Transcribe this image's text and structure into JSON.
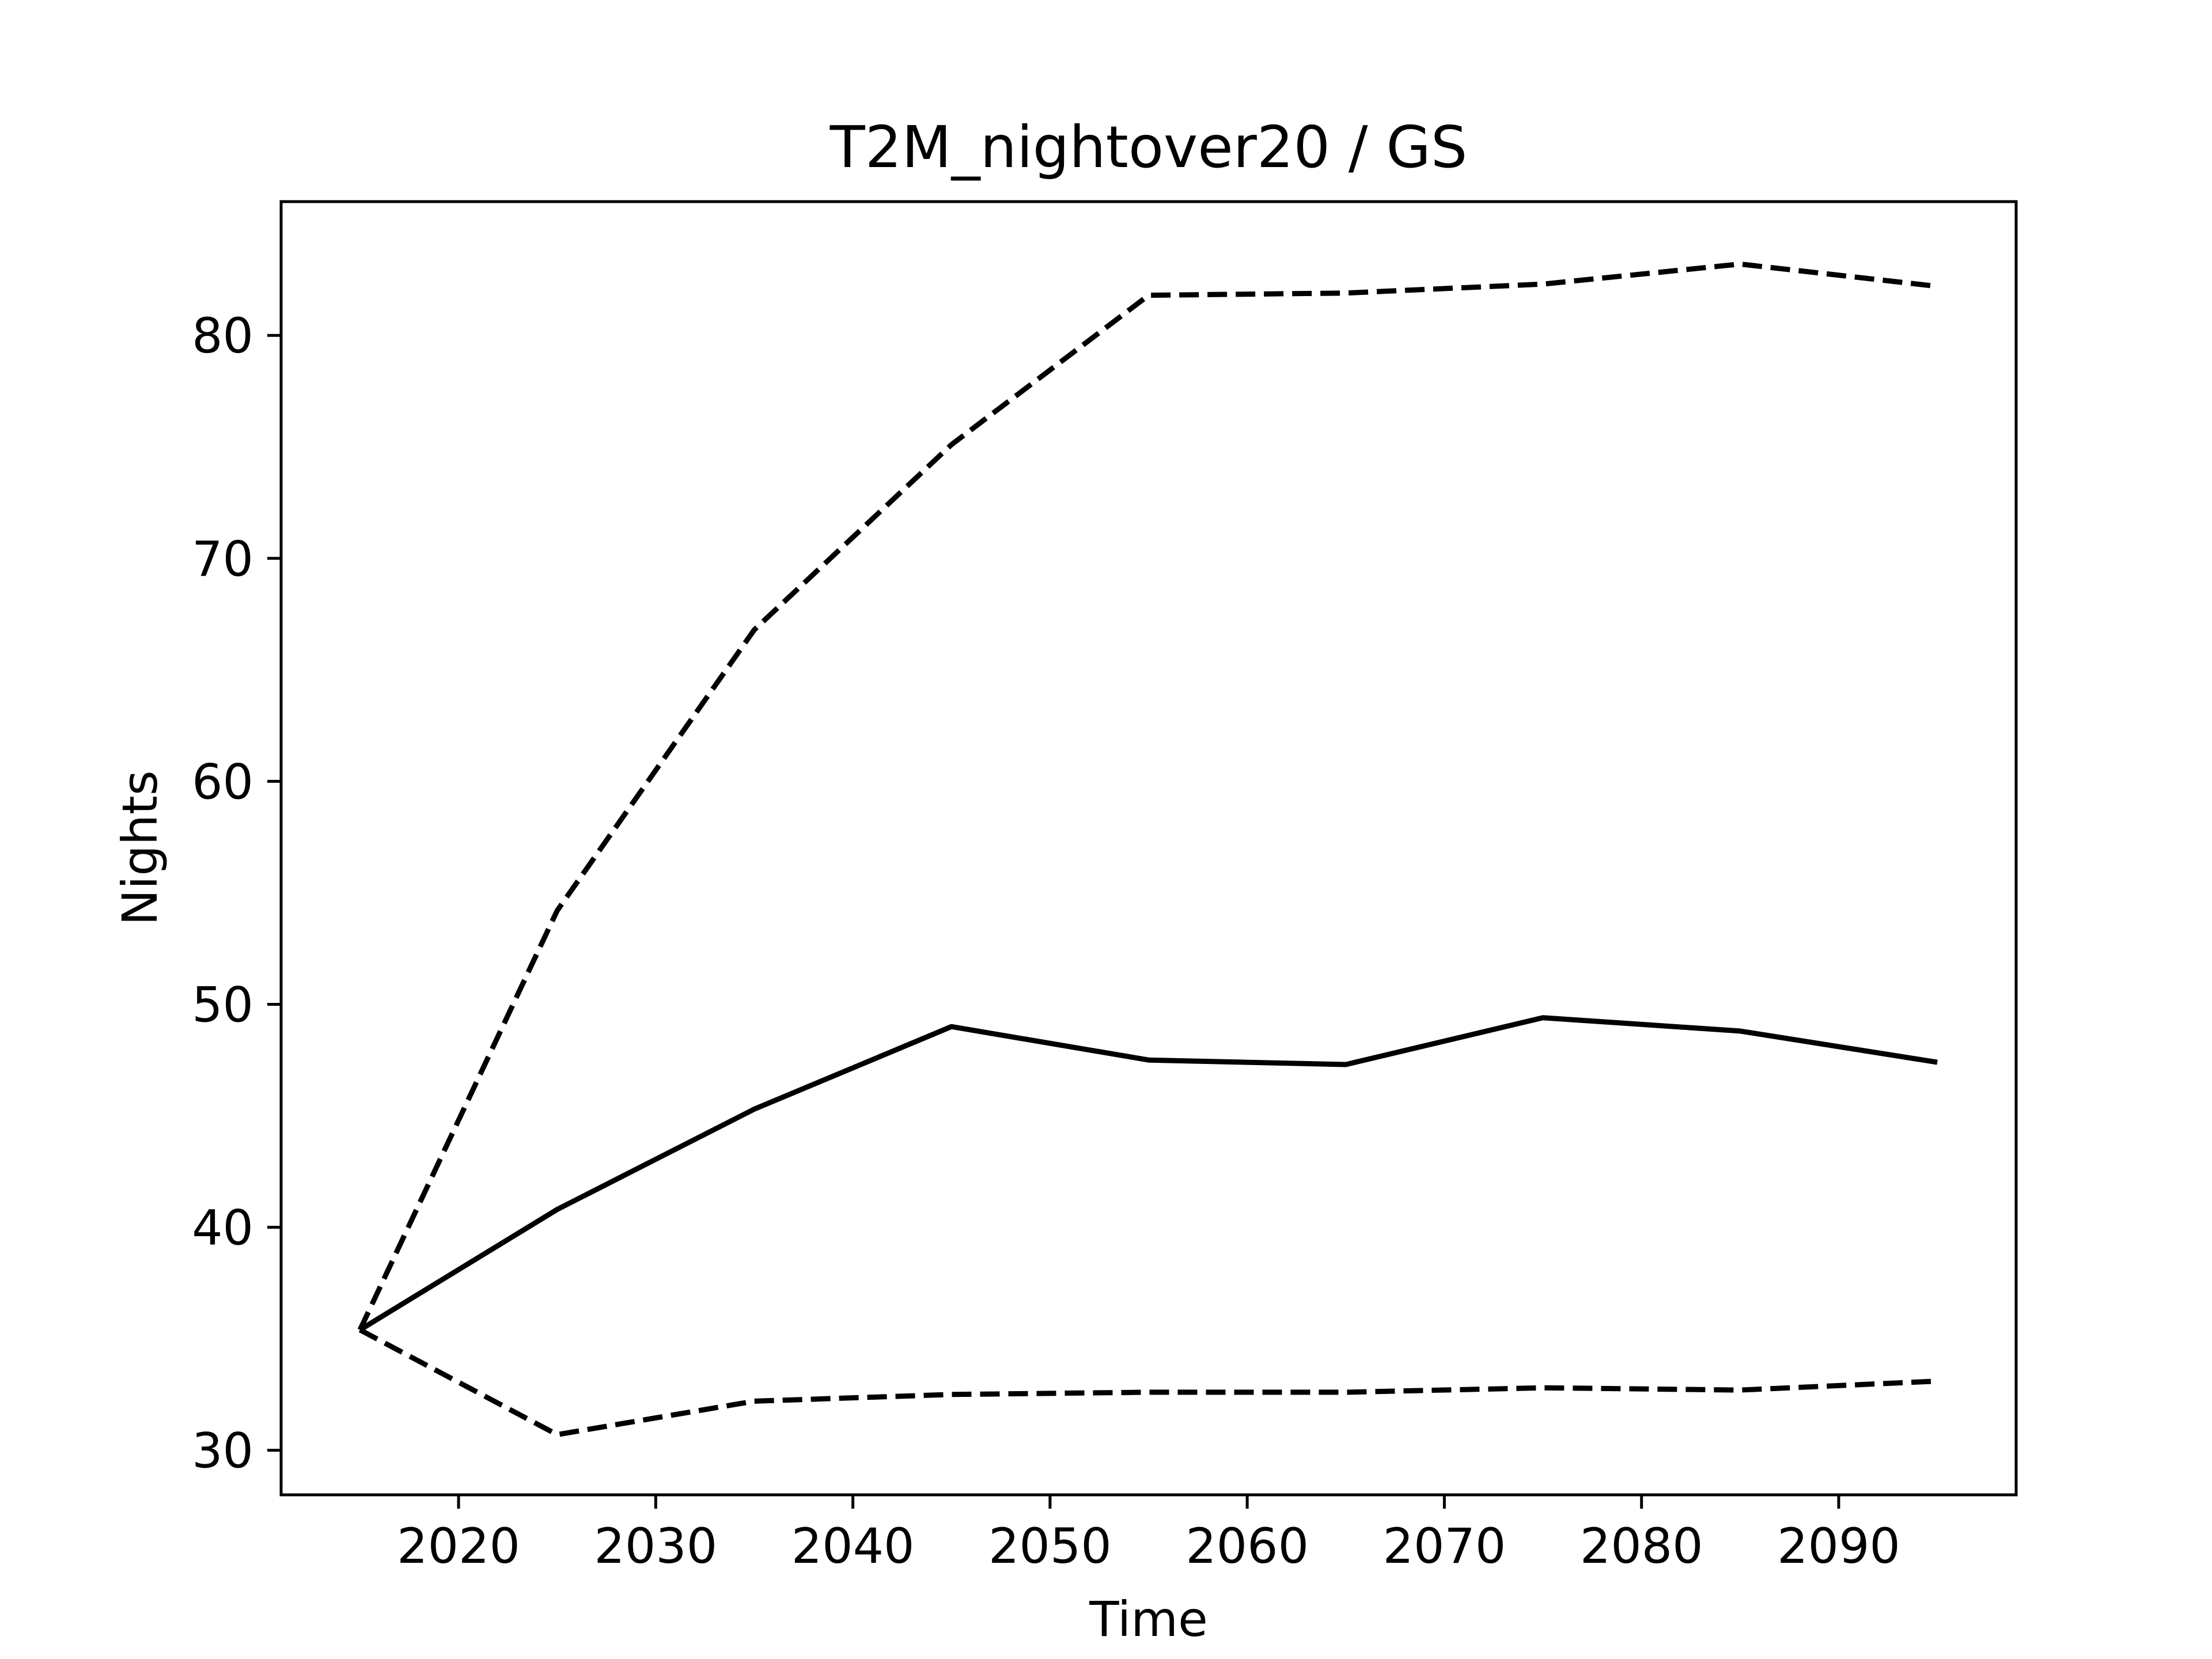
{
  "chart_data": {
    "type": "line",
    "title": "T2M_nightover20 / GS",
    "xlabel": "Time",
    "ylabel": "Nights",
    "xlim": [
      2011,
      2099
    ],
    "ylim": [
      28,
      86
    ],
    "xticks": [
      2020,
      2030,
      2040,
      2050,
      2060,
      2070,
      2080,
      2090
    ],
    "yticks": [
      30,
      40,
      50,
      60,
      70,
      80
    ],
    "grid": false,
    "legend": "none",
    "x": [
      2015,
      2025,
      2035,
      2045,
      2055,
      2065,
      2075,
      2085,
      2095
    ],
    "series": [
      {
        "style": "dashed",
        "color": "#000000",
        "values": [
          35.4,
          54.2,
          66.8,
          75.1,
          81.8,
          81.9,
          82.3,
          83.2,
          82.2
        ]
      },
      {
        "style": "solid",
        "color": "#000000",
        "values": [
          35.4,
          40.8,
          45.3,
          49.0,
          47.5,
          47.3,
          49.4,
          48.8,
          47.4
        ]
      },
      {
        "style": "dashed",
        "color": "#000000",
        "values": [
          35.4,
          30.7,
          32.2,
          32.5,
          32.6,
          32.6,
          32.8,
          32.7,
          33.1
        ]
      }
    ]
  }
}
